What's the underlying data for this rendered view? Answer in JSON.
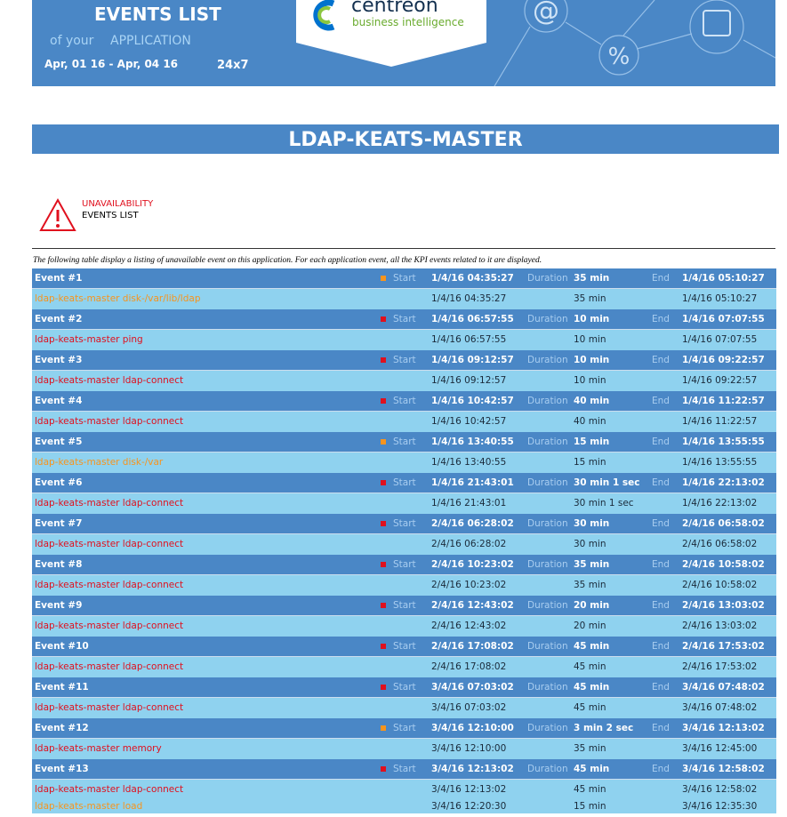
{
  "header": {
    "title": "EVENTS LIST",
    "of_your": "of your",
    "application": "APPLICATION",
    "period": "Apr, 01 16 - Apr, 04 16",
    "timeperiod": "24x7",
    "brand": "centreon",
    "tagline": "business intelligence"
  },
  "banner": "LDAP-KEATS-MASTER",
  "section": {
    "line1": "UNAVAILABILITY",
    "line2": "EVENTS LIST"
  },
  "description": "The following table display a listing of unavailable event on this application. For each application event, all the KPI events related to it are displayed.",
  "labels": {
    "start": "Start",
    "duration": "Duration",
    "end": "End"
  },
  "events": [
    {
      "name": "Event #1",
      "color": "#f7941d",
      "start": "1/4/16 04:35:27",
      "duration": "35 min",
      "end": "1/4/16 05:10:27",
      "kpis": [
        {
          "name": "ldap-keats-master disk-/var/lib/ldap",
          "color": "#f7941d",
          "start": "1/4/16 04:35:27",
          "duration": "35 min",
          "end": "1/4/16 05:10:27"
        }
      ]
    },
    {
      "name": "Event #2",
      "color": "#e0101e",
      "start": "1/4/16 06:57:55",
      "duration": "10 min",
      "end": "1/4/16 07:07:55",
      "kpis": [
        {
          "name": "ldap-keats-master ping",
          "color": "#e0101e",
          "start": "1/4/16 06:57:55",
          "duration": "10 min",
          "end": "1/4/16 07:07:55"
        }
      ]
    },
    {
      "name": "Event #3",
      "color": "#e0101e",
      "start": "1/4/16 09:12:57",
      "duration": "10 min",
      "end": "1/4/16 09:22:57",
      "kpis": [
        {
          "name": "ldap-keats-master ldap-connect",
          "color": "#e0101e",
          "start": "1/4/16 09:12:57",
          "duration": "10 min",
          "end": "1/4/16 09:22:57"
        }
      ]
    },
    {
      "name": "Event #4",
      "color": "#e0101e",
      "start": "1/4/16 10:42:57",
      "duration": "40 min",
      "end": "1/4/16 11:22:57",
      "kpis": [
        {
          "name": "ldap-keats-master ldap-connect",
          "color": "#e0101e",
          "start": "1/4/16 10:42:57",
          "duration": "40 min",
          "end": "1/4/16 11:22:57"
        }
      ]
    },
    {
      "name": "Event #5",
      "color": "#f7941d",
      "start": "1/4/16 13:40:55",
      "duration": "15 min",
      "end": "1/4/16 13:55:55",
      "kpis": [
        {
          "name": "ldap-keats-master disk-/var",
          "color": "#f7941d",
          "start": "1/4/16 13:40:55",
          "duration": "15 min",
          "end": "1/4/16 13:55:55"
        }
      ]
    },
    {
      "name": "Event #6",
      "color": "#e0101e",
      "start": "1/4/16 21:43:01",
      "duration": "30 min 1 sec",
      "end": "1/4/16 22:13:02",
      "kpis": [
        {
          "name": "ldap-keats-master ldap-connect",
          "color": "#e0101e",
          "start": "1/4/16 21:43:01",
          "duration": "30 min 1 sec",
          "end": "1/4/16 22:13:02"
        }
      ]
    },
    {
      "name": "Event #7",
      "color": "#e0101e",
      "start": "2/4/16 06:28:02",
      "duration": "30 min",
      "end": "2/4/16 06:58:02",
      "kpis": [
        {
          "name": "ldap-keats-master ldap-connect",
          "color": "#e0101e",
          "start": "2/4/16 06:28:02",
          "duration": "30 min",
          "end": "2/4/16 06:58:02"
        }
      ]
    },
    {
      "name": "Event #8",
      "color": "#e0101e",
      "start": "2/4/16 10:23:02",
      "duration": "35 min",
      "end": "2/4/16 10:58:02",
      "kpis": [
        {
          "name": "ldap-keats-master ldap-connect",
          "color": "#e0101e",
          "start": "2/4/16 10:23:02",
          "duration": "35 min",
          "end": "2/4/16 10:58:02"
        }
      ]
    },
    {
      "name": "Event #9",
      "color": "#e0101e",
      "start": "2/4/16 12:43:02",
      "duration": "20 min",
      "end": "2/4/16 13:03:02",
      "kpis": [
        {
          "name": "ldap-keats-master ldap-connect",
          "color": "#e0101e",
          "start": "2/4/16 12:43:02",
          "duration": "20 min",
          "end": "2/4/16 13:03:02"
        }
      ]
    },
    {
      "name": "Event #10",
      "color": "#e0101e",
      "start": "2/4/16 17:08:02",
      "duration": "45 min",
      "end": "2/4/16 17:53:02",
      "kpis": [
        {
          "name": "ldap-keats-master ldap-connect",
          "color": "#e0101e",
          "start": "2/4/16 17:08:02",
          "duration": "45 min",
          "end": "2/4/16 17:53:02"
        }
      ]
    },
    {
      "name": "Event #11",
      "color": "#e0101e",
      "start": "3/4/16 07:03:02",
      "duration": "45 min",
      "end": "3/4/16 07:48:02",
      "kpis": [
        {
          "name": "ldap-keats-master ldap-connect",
          "color": "#e0101e",
          "start": "3/4/16 07:03:02",
          "duration": "45 min",
          "end": "3/4/16 07:48:02"
        }
      ]
    },
    {
      "name": "Event #12",
      "color": "#f7941d",
      "start": "3/4/16 12:10:00",
      "duration": "3 min 2 sec",
      "end": "3/4/16 12:13:02",
      "kpis": [
        {
          "name": "ldap-keats-master memory",
          "color": "#e0101e",
          "start": "3/4/16 12:10:00",
          "duration": "35 min",
          "end": "3/4/16 12:45:00"
        }
      ]
    },
    {
      "name": "Event #13",
      "color": "#e0101e",
      "start": "3/4/16 12:13:02",
      "duration": "45 min",
      "end": "3/4/16 12:58:02",
      "kpis": [
        {
          "name": "ldap-keats-master ldap-connect",
          "color": "#e0101e",
          "start": "3/4/16 12:13:02",
          "duration": "45 min",
          "end": "3/4/16 12:58:02"
        },
        {
          "name": "ldap-keats-master load",
          "color": "#f7941d",
          "start": "3/4/16 12:20:30",
          "duration": "15 min",
          "end": "3/4/16 12:35:30"
        }
      ]
    }
  ]
}
